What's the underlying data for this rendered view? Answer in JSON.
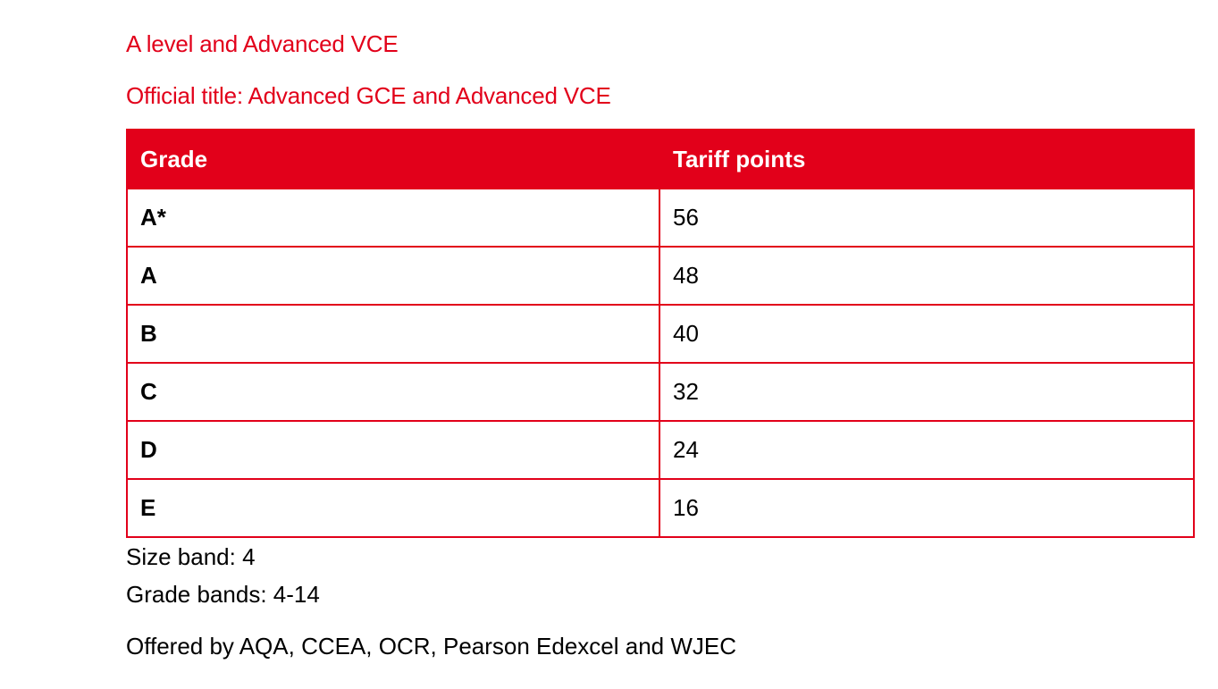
{
  "headings": {
    "title": "A level and Advanced VCE",
    "official_title": "Official title: Advanced GCE and Advanced VCE"
  },
  "table": {
    "columns": [
      "Grade",
      "Tariff points"
    ],
    "rows": [
      {
        "grade": "A*",
        "points": "56"
      },
      {
        "grade": "A",
        "points": "48"
      },
      {
        "grade": "B",
        "points": "40"
      },
      {
        "grade": "C",
        "points": "32"
      },
      {
        "grade": "D",
        "points": "24"
      },
      {
        "grade": "E",
        "points": "16"
      }
    ]
  },
  "notes": {
    "size_band": "Size band: 4",
    "grade_bands": "Grade bands: 4-14",
    "offered_by": "Offered by AQA, CCEA, OCR, Pearson Edexcel and WJEC"
  },
  "colors": {
    "accent": "#e2001a",
    "text": "#000000",
    "header_text": "#ffffff"
  }
}
